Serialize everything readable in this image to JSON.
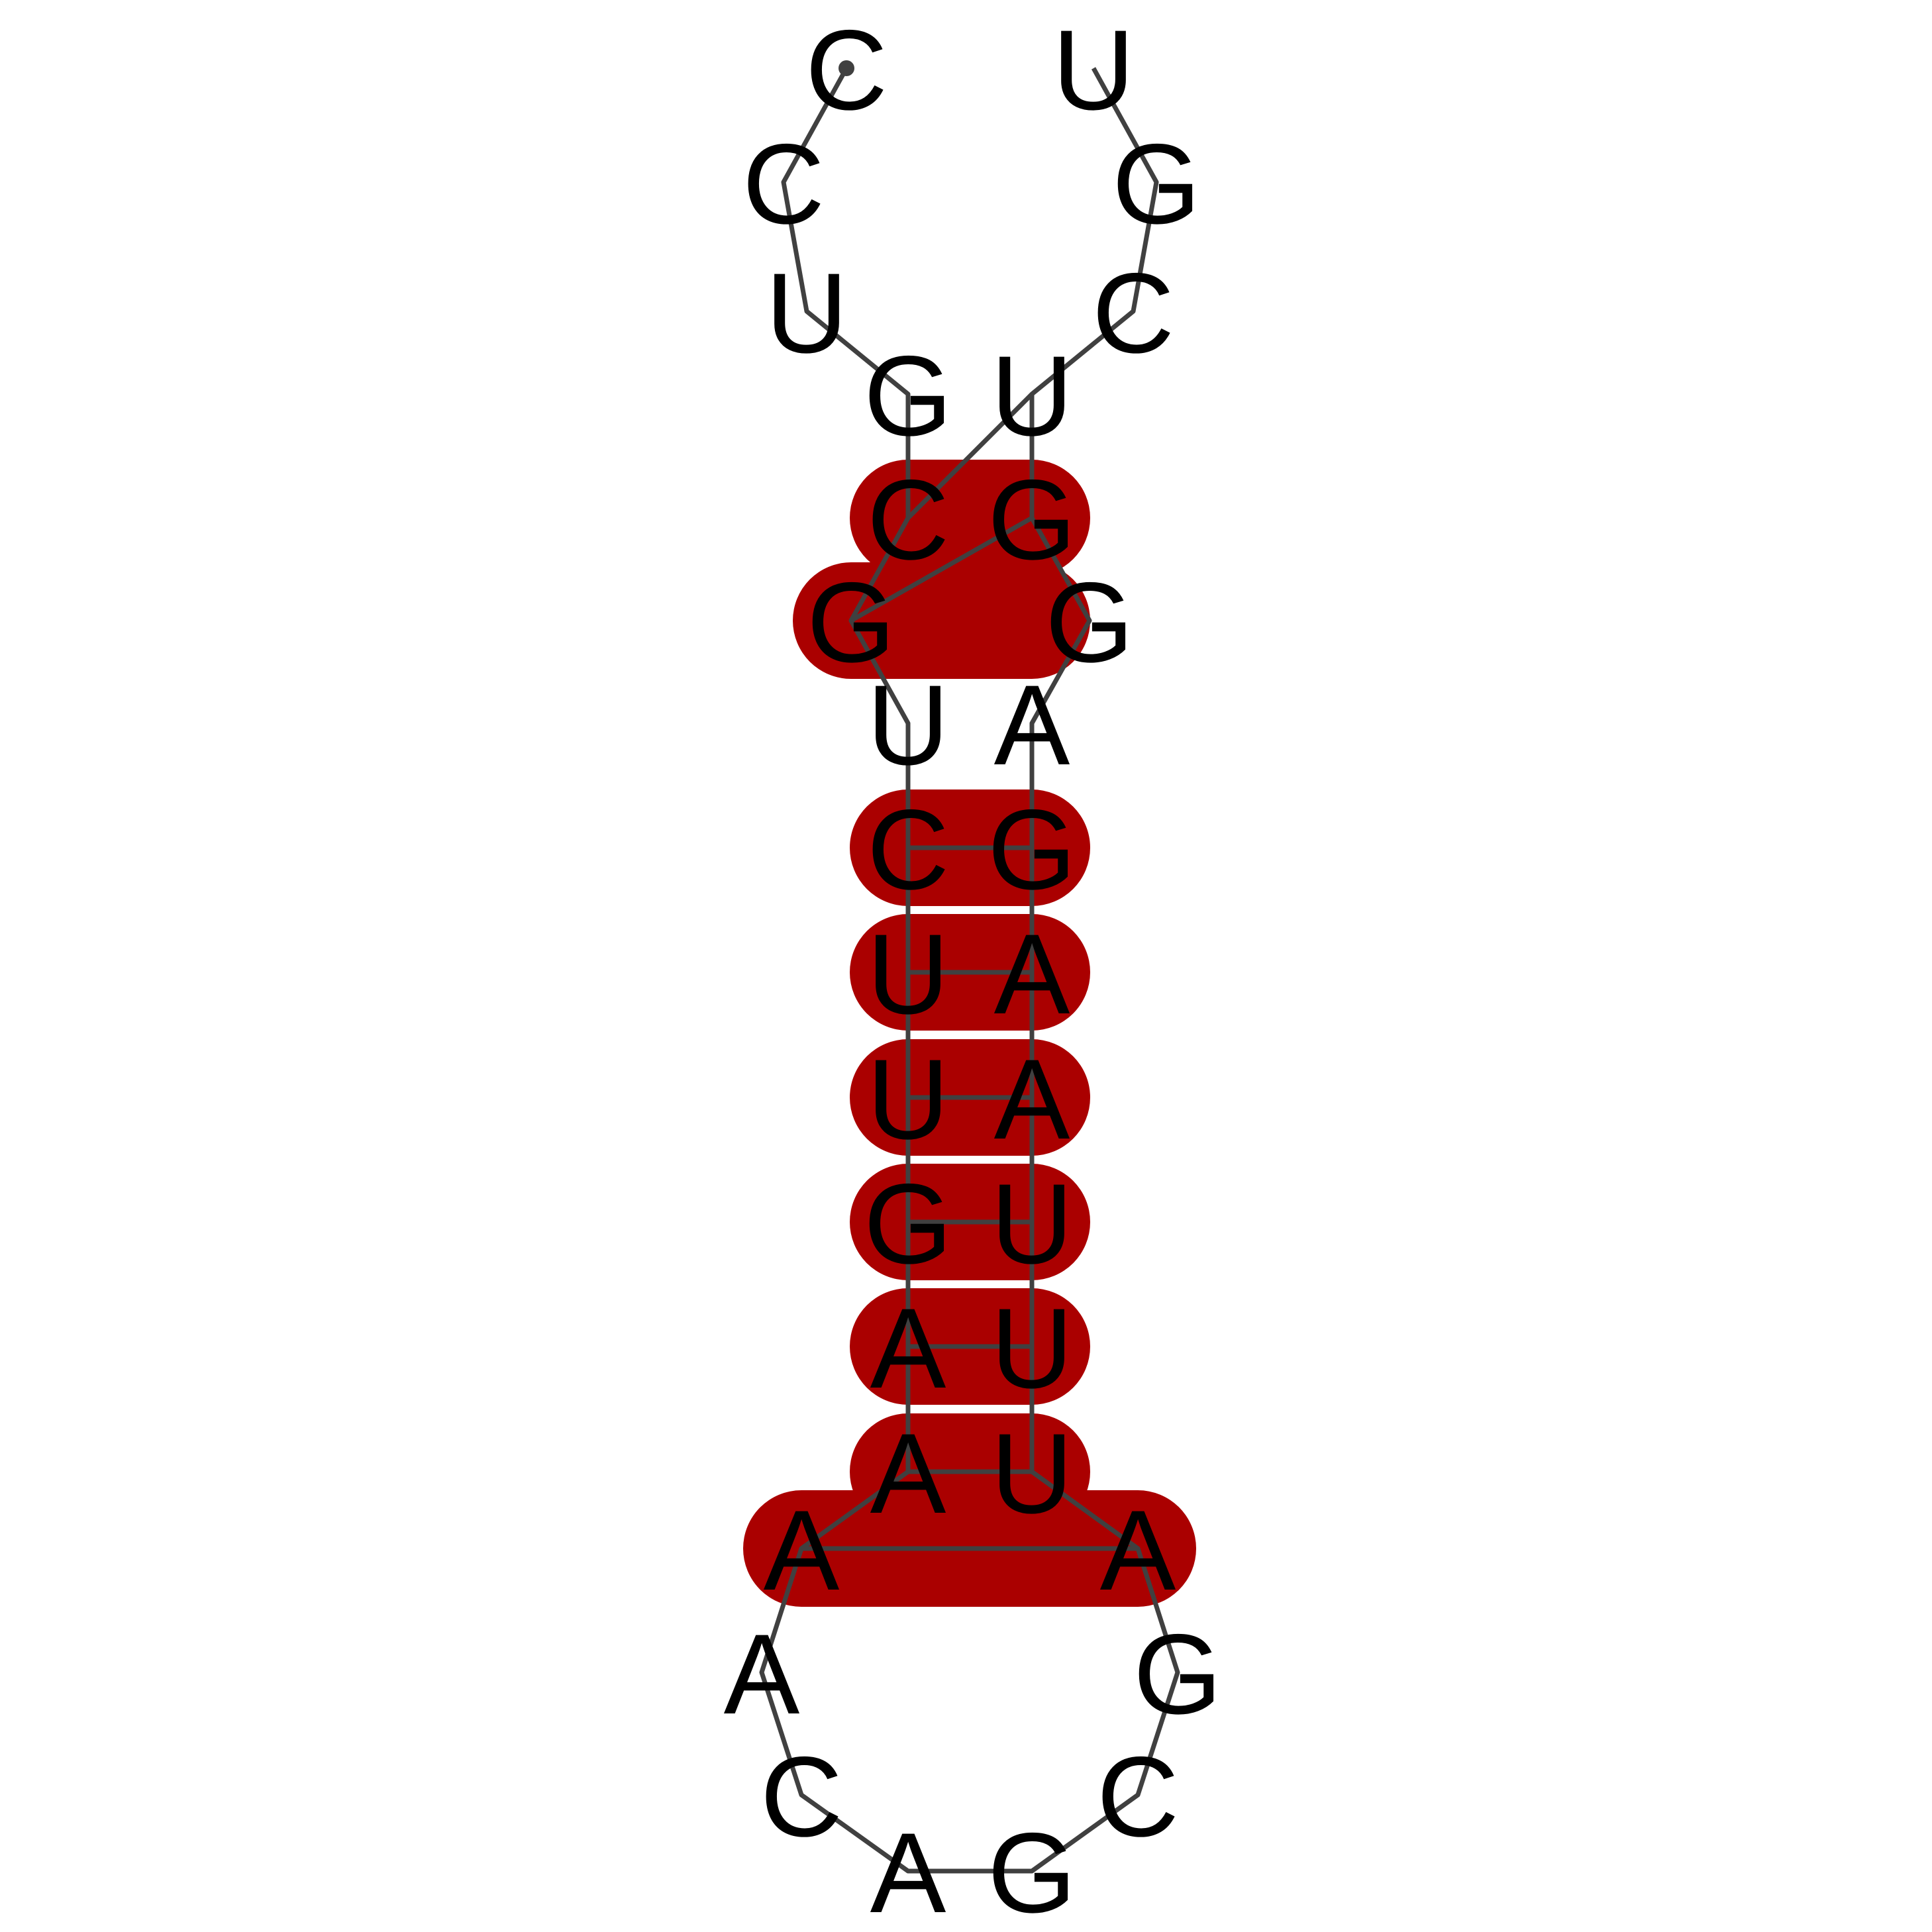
{
  "diagram": {
    "type": "rna-secondary-structure",
    "colors": {
      "background": "#ffffff",
      "pair_highlight": "#aa0000",
      "backbone": "#404040",
      "letters": "#000000"
    },
    "sequence": [
      "C",
      "C",
      "U",
      "G",
      "C",
      "G",
      "U",
      "C",
      "U",
      "U",
      "G",
      "A",
      "A",
      "A",
      "A",
      "C",
      "A",
      "G",
      "C",
      "G",
      "A",
      "U",
      "U",
      "U",
      "A",
      "A",
      "G",
      "A",
      "G",
      "G",
      "U",
      "C",
      "G",
      "U"
    ],
    "pairs": [
      [
        4,
        30
      ],
      [
        5,
        29
      ],
      [
        7,
        26
      ],
      [
        8,
        25
      ],
      [
        9,
        24
      ],
      [
        10,
        23
      ],
      [
        11,
        22
      ],
      [
        12,
        21
      ],
      [
        13,
        20
      ]
    ]
  }
}
